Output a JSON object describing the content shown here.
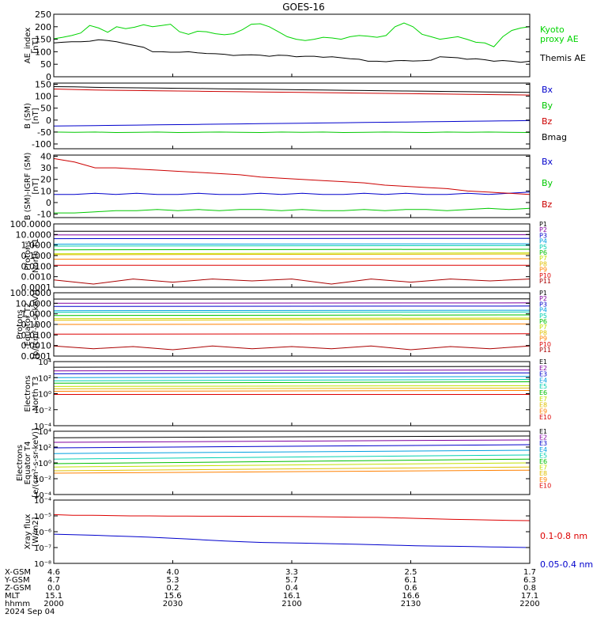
{
  "title": "GOES-16",
  "chart_data": [
    {
      "type": "line",
      "ylabel": [
        "AE_index",
        "[nT]"
      ],
      "ylim": [
        0,
        250
      ],
      "yticks": [
        0,
        50,
        100,
        150,
        200,
        250
      ],
      "ytick_labels": [
        "0",
        "50",
        "100",
        "150",
        "200",
        "250"
      ],
      "series": [
        {
          "name": [
            "Kyoto",
            "proxy AE"
          ],
          "color": "#00d400",
          "values": [
            152,
            158,
            165,
            175,
            205,
            195,
            178,
            200,
            192,
            198,
            208,
            200,
            205,
            210,
            180,
            170,
            182,
            180,
            172,
            168,
            172,
            188,
            210,
            212,
            200,
            180,
            160,
            150,
            145,
            150,
            158,
            155,
            150,
            160,
            165,
            162,
            158,
            165,
            200,
            215,
            200,
            170,
            160,
            150,
            155,
            160,
            150,
            138,
            135,
            120,
            160,
            185,
            195,
            200
          ]
        },
        {
          "name": [
            "Themis AE"
          ],
          "color": "#000000",
          "values": [
            135,
            138,
            140,
            140,
            142,
            148,
            145,
            140,
            132,
            125,
            118,
            100,
            100,
            98,
            98,
            100,
            96,
            93,
            92,
            90,
            85,
            87,
            88,
            86,
            82,
            86,
            85,
            80,
            82,
            82,
            78,
            80,
            76,
            72,
            70,
            62,
            62,
            60,
            64,
            65,
            63,
            64,
            66,
            80,
            78,
            76,
            70,
            72,
            68,
            62,
            65,
            62,
            58,
            62
          ]
        }
      ]
    },
    {
      "type": "line",
      "ylabel": [
        "B (SM)",
        "[nT]"
      ],
      "ylim": [
        -120,
        155
      ],
      "yticks": [
        -100,
        -50,
        0,
        50,
        100,
        150
      ],
      "ytick_labels": [
        "-100",
        "-50",
        "0",
        "50",
        "100",
        "150"
      ],
      "series": [
        {
          "name": [
            "Bx"
          ],
          "color": "#0000cc",
          "values": [
            -25,
            -24,
            -23,
            -22,
            -21,
            -20,
            -19,
            -18,
            -17,
            -16,
            -15,
            -14,
            -13,
            -12,
            -11,
            -10,
            -9,
            -8,
            -7,
            -6,
            -5,
            -4,
            -3,
            -2
          ]
        },
        {
          "name": [
            "By"
          ],
          "color": "#00c800",
          "values": [
            -50,
            -51,
            -50,
            -52,
            -51,
            -50,
            -52,
            -51,
            -50,
            -51,
            -52,
            -50,
            -51,
            -50,
            -52,
            -51,
            -50,
            -51,
            -52,
            -50,
            -51,
            -50,
            -51,
            -52
          ]
        },
        {
          "name": [
            "Bz"
          ],
          "color": "#cc0000",
          "values": [
            130,
            128,
            126,
            125,
            124,
            123,
            122,
            121,
            120,
            119,
            118,
            117,
            116,
            115,
            114,
            113,
            112,
            111,
            110,
            109,
            108,
            107,
            106,
            105
          ]
        },
        {
          "name": [
            "Bmag"
          ],
          "color": "#000000",
          "values": [
            140,
            139,
            137,
            136,
            135,
            134,
            133,
            132,
            131,
            130,
            129,
            128,
            127,
            126,
            125,
            124,
            123,
            122,
            121,
            120,
            119,
            118,
            117,
            116
          ]
        }
      ]
    },
    {
      "type": "line",
      "ylabel": [
        "B (SM)-IGRF (SM)",
        "[nT]"
      ],
      "ylim": [
        -13,
        41
      ],
      "yticks": [
        -10,
        0,
        10,
        20,
        30,
        40
      ],
      "ytick_labels": [
        "-10",
        "0",
        "10",
        "20",
        "30",
        "40"
      ],
      "series": [
        {
          "name": [
            "Bx"
          ],
          "color": "#0000cc",
          "values": [
            7,
            7,
            8,
            7,
            8,
            7,
            7,
            8,
            7,
            7,
            8,
            7,
            8,
            7,
            7,
            8,
            7,
            8,
            7,
            7,
            8,
            7,
            8,
            9
          ]
        },
        {
          "name": [
            "By"
          ],
          "color": "#00c800",
          "values": [
            -9,
            -9,
            -8,
            -7,
            -7,
            -6,
            -7,
            -6,
            -7,
            -6,
            -6,
            -7,
            -6,
            -7,
            -7,
            -6,
            -7,
            -6,
            -6,
            -7,
            -6,
            -5,
            -6,
            -5
          ]
        },
        {
          "name": [
            "Bz"
          ],
          "color": "#cc0000",
          "values": [
            38,
            35,
            30,
            30,
            29,
            28,
            27,
            26,
            25,
            24,
            22,
            21,
            20,
            19,
            18,
            17,
            15,
            14,
            13,
            12,
            10,
            9,
            8,
            7
          ]
        }
      ]
    },
    {
      "type": "line",
      "yscale": "log",
      "ylabel": [
        "Protons",
        "North T1"
      ],
      "ylim": [
        0.0001,
        100
      ],
      "yticks": [
        0.0001,
        0.001,
        0.01,
        0.1,
        1,
        10,
        100
      ],
      "ytick_labels": [
        "0.0001",
        "0.0010",
        "0.0100",
        "0.1000",
        "1.0000",
        "10.0000",
        "100.0000"
      ],
      "series": [
        {
          "name": [
            "P1"
          ],
          "color": "#000000",
          "values": [
            20,
            20
          ]
        },
        {
          "name": [
            "P2"
          ],
          "color": "#8000a0",
          "values": [
            9,
            9.5
          ]
        },
        {
          "name": [
            "P3"
          ],
          "color": "#0000cc",
          "values": [
            4,
            4.3
          ]
        },
        {
          "name": [
            "P4"
          ],
          "color": "#00a0e0",
          "values": [
            1.2,
            1.3
          ]
        },
        {
          "name": [
            "P5"
          ],
          "color": "#00d0b0",
          "values": [
            0.8,
            0.9
          ]
        },
        {
          "name": [
            "P6"
          ],
          "color": "#00c000",
          "values": [
            0.35,
            0.4
          ]
        },
        {
          "name": [
            "P7"
          ],
          "color": "#c0e000",
          "values": [
            0.15,
            0.18
          ]
        },
        {
          "name": [
            "P8"
          ],
          "color": "#e0c000",
          "values": [
            0.12,
            0.14
          ]
        },
        {
          "name": [
            "P9"
          ],
          "color": "#ff8000",
          "values": [
            0.045,
            0.05
          ]
        },
        {
          "name": [
            "P10"
          ],
          "color": "#dd0000",
          "values": [
            0.012,
            0.012
          ]
        },
        {
          "name": [
            "P11"
          ],
          "color": "#aa0000",
          "values": [
            0.0005,
            0.0002,
            0.0006,
            0.0003,
            0.0006,
            0.0004,
            0.0006,
            0.0002,
            0.0006,
            0.0003,
            0.0006,
            0.0004,
            0.0006
          ]
        }
      ]
    },
    {
      "type": "line",
      "yscale": "log",
      "ylabel": [
        "Protons",
        "Equator T2",
        "[p/(cm²-s-sr-keV)]"
      ],
      "ylim": [
        0.0001,
        100
      ],
      "yticks": [
        0.0001,
        0.001,
        0.01,
        0.1,
        1,
        10,
        100
      ],
      "ytick_labels": [
        "0.0001",
        "0.0010",
        "0.0100",
        "0.1000",
        "1.0000",
        "10.0000",
        "100.0000"
      ],
      "series": [
        {
          "name": [
            "P1"
          ],
          "color": "#000000",
          "values": [
            25,
            26
          ]
        },
        {
          "name": [
            "P2"
          ],
          "color": "#8000a0",
          "values": [
            10,
            11
          ]
        },
        {
          "name": [
            "P3"
          ],
          "color": "#0000cc",
          "values": [
            5,
            5.5
          ]
        },
        {
          "name": [
            "P4"
          ],
          "color": "#00a0e0",
          "values": [
            2,
            2.2
          ]
        },
        {
          "name": [
            "P5"
          ],
          "color": "#00d0b0",
          "values": [
            1.4,
            1.5
          ]
        },
        {
          "name": [
            "P6"
          ],
          "color": "#00c000",
          "values": [
            0.7,
            0.8
          ]
        },
        {
          "name": [
            "P7"
          ],
          "color": "#c0e000",
          "values": [
            0.35,
            0.4
          ]
        },
        {
          "name": [
            "P8"
          ],
          "color": "#e0c000",
          "values": [
            0.25,
            0.3
          ]
        },
        {
          "name": [
            "P9"
          ],
          "color": "#ff8000",
          "values": [
            0.1,
            0.11
          ]
        },
        {
          "name": [
            "P10"
          ],
          "color": "#dd0000",
          "values": [
            0.012,
            0.013
          ]
        },
        {
          "name": [
            "P11"
          ],
          "color": "#aa0000",
          "values": [
            0.0009,
            0.0005,
            0.0008,
            0.0004,
            0.0009,
            0.0005,
            0.0008,
            0.0005,
            0.0009,
            0.0004,
            0.0008,
            0.0005,
            0.0009
          ]
        }
      ]
    },
    {
      "type": "line",
      "yscale": "log",
      "ylabel": [
        "Electrons",
        "North T3"
      ],
      "ylim": [
        0.0001,
        10000
      ],
      "yticks": [
        0.0001,
        0.01,
        1,
        100,
        10000
      ],
      "ytick_labels": [
        "10⁻⁴",
        "10⁻²",
        "10⁰",
        "10²",
        "10⁴"
      ],
      "series": [
        {
          "name": [
            "E1"
          ],
          "color": "#000000",
          "values": [
            2000,
            2500
          ]
        },
        {
          "name": [
            "E2"
          ],
          "color": "#8000a0",
          "values": [
            700,
            900
          ]
        },
        {
          "name": [
            "E3"
          ],
          "color": "#0000cc",
          "values": [
            300,
            400
          ]
        },
        {
          "name": [
            "E4"
          ],
          "color": "#00a0e0",
          "values": [
            100,
            140
          ]
        },
        {
          "name": [
            "E5"
          ],
          "color": "#00d0b0",
          "values": [
            40,
            60
          ]
        },
        {
          "name": [
            "E6"
          ],
          "color": "#00c000",
          "values": [
            20,
            30
          ]
        },
        {
          "name": [
            "E7"
          ],
          "color": "#c0e000",
          "values": [
            8,
            10
          ]
        },
        {
          "name": [
            "E8"
          ],
          "color": "#e0c000",
          "values": [
            4,
            5
          ]
        },
        {
          "name": [
            "E9"
          ],
          "color": "#ff8000",
          "values": [
            2,
            2.5
          ]
        },
        {
          "name": [
            "E10"
          ],
          "color": "#dd0000",
          "values": [
            0.8,
            0.8
          ]
        }
      ]
    },
    {
      "type": "line",
      "yscale": "log",
      "ylabel": [
        "Electrons",
        "Equator T4",
        "[e/(cm²-s-sr-keV)]"
      ],
      "ylim": [
        0.0001,
        10000
      ],
      "yticks": [
        0.0001,
        0.01,
        1,
        100,
        10000
      ],
      "ytick_labels": [
        "10⁻⁴",
        "10⁻²",
        "10⁰",
        "10²",
        "10⁴"
      ],
      "series": [
        {
          "name": [
            "E1"
          ],
          "color": "#000000",
          "values": [
            1500,
            2500
          ]
        },
        {
          "name": [
            "E2"
          ],
          "color": "#8000a0",
          "values": [
            400,
            800
          ]
        },
        {
          "name": [
            "E3"
          ],
          "color": "#0000cc",
          "values": [
            80,
            200
          ]
        },
        {
          "name": [
            "E4"
          ],
          "color": "#00a0e0",
          "values": [
            15,
            40
          ]
        },
        {
          "name": [
            "E5"
          ],
          "color": "#00d0b0",
          "values": [
            3,
            10
          ]
        },
        {
          "name": [
            "E6"
          ],
          "color": "#00c000",
          "values": [
            0.8,
            3
          ]
        },
        {
          "name": [
            "E7"
          ],
          "color": "#c0e000",
          "values": [
            0.3,
            1
          ]
        },
        {
          "name": [
            "E8"
          ],
          "color": "#e0c000",
          "values": [
            0.1,
            0.3
          ]
        },
        {
          "name": [
            "E9"
          ],
          "color": "#ff8000",
          "values": [
            0.05,
            0.12
          ]
        },
        {
          "name": [
            "E10"
          ],
          "color": "#dd0000",
          "values": []
        }
      ]
    },
    {
      "type": "line",
      "yscale": "log",
      "ylabel": [
        "Xray flux",
        "[W/m2]"
      ],
      "ylim": [
        1e-08,
        0.0001
      ],
      "yticks": [
        1e-08,
        1e-07,
        1e-06,
        1e-05,
        0.0001
      ],
      "ytick_labels": [
        "10⁻⁸",
        "10⁻⁷",
        "10⁻⁶",
        "10⁻⁵",
        "10⁻⁴"
      ],
      "series": [
        {
          "name": [
            "0.1-0.8 nm"
          ],
          "color": "#dd0000",
          "values": [
            1.2e-05,
            1.1e-05,
            1.1e-05,
            1.05e-05,
            1e-05,
            1e-05,
            9.8e-06,
            9.7e-06,
            9.6e-06,
            9.5e-06,
            9.4e-06,
            9.3e-06,
            9.2e-06,
            9e-06,
            8.8e-06,
            8.5e-06,
            8.2e-06,
            8e-06,
            7.5e-06,
            7e-06,
            6.5e-06,
            6e-06,
            5.8e-06,
            5.5e-06,
            5.2e-06,
            5e-06
          ]
        },
        {
          "name": [
            "0.05-0.4 nm"
          ],
          "color": "#0000cc",
          "values": [
            7e-07,
            6.5e-07,
            6e-07,
            5.5e-07,
            5e-07,
            4.5e-07,
            4e-07,
            3.5e-07,
            3e-07,
            2.6e-07,
            2.3e-07,
            2.1e-07,
            2e-07,
            1.9e-07,
            1.8e-07,
            1.7e-07,
            1.6e-07,
            1.5e-07,
            1.4e-07,
            1.3e-07,
            1.25e-07,
            1.2e-07,
            1.15e-07,
            1.1e-07,
            1.05e-07,
            1e-07
          ]
        }
      ]
    }
  ],
  "x_axis": {
    "tick_positions": [
      0,
      0.25,
      0.5,
      0.75,
      1
    ],
    "rows": [
      {
        "label": "X-GSM",
        "values": [
          "4.6",
          "4.0",
          "3.3",
          "2.5",
          "1.7"
        ]
      },
      {
        "label": "Y-GSM",
        "values": [
          "4.7",
          "5.3",
          "5.7",
          "6.1",
          "6.3"
        ]
      },
      {
        "label": "Z-GSM",
        "values": [
          "0.0",
          "0.2",
          "0.4",
          "0.6",
          "0.8"
        ]
      },
      {
        "label": "MLT",
        "values": [
          "15.1",
          "15.6",
          "16.1",
          "16.6",
          "17.1"
        ]
      },
      {
        "label": "hhmm",
        "values": [
          "2000",
          "2030",
          "2100",
          "2130",
          "2200"
        ]
      }
    ],
    "date": "2024 Sep 04"
  }
}
